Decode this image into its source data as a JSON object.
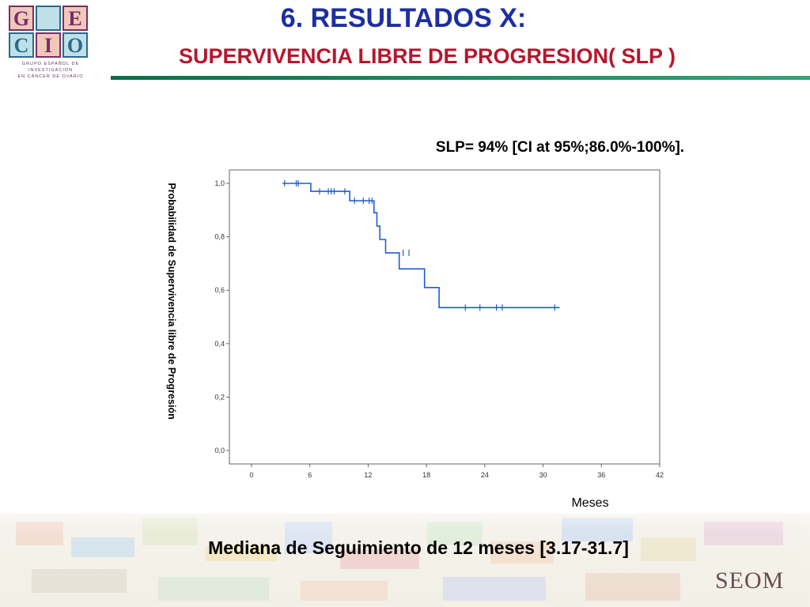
{
  "header": {
    "title": "6. RESULTADOS X:",
    "subtitle": "SUPERVIVENCIA LIBRE DE PROGRESION( SLP )"
  },
  "logo": {
    "letters": [
      "G",
      "E",
      "C",
      "I",
      "O"
    ],
    "caption": [
      "GRUPO ESPAÑOL DE",
      "INVESTIGACIÓN",
      "EN CÁNCER DE OVARIO"
    ]
  },
  "annotation": "SLP= 94% [CI at 95%;86.0%-100%].",
  "footer": {
    "text": "Mediana de Seguimiento de 12 meses [3.17-31.7]",
    "brand": "SEOM"
  },
  "colors": {
    "title": "#1c2fa0",
    "subtitle": "#b5172d",
    "curve": "#1f5fd0",
    "accent_rule": "#1a8a5f"
  },
  "chart_data": {
    "type": "line",
    "step": true,
    "xlabel": "Meses",
    "ylabel": "Probabilidad de Supervivencia libre de Progresión",
    "xlim": [
      0,
      42
    ],
    "ylim": [
      0,
      1
    ],
    "xticks": [
      "0",
      "6",
      "12",
      "18",
      "24",
      "30",
      "36",
      "42"
    ],
    "yticks": [
      "0,0",
      "0,2",
      "0,4",
      "0,6",
      "0,8",
      "1,0"
    ],
    "series": [
      {
        "x": [
          3.2,
          6.1,
          6.1,
          10.1,
          10.1,
          12.6,
          12.6,
          12.9,
          12.9,
          13.2,
          13.2,
          13.8,
          13.8,
          15.2,
          15.2,
          17.8,
          17.8,
          19.3,
          19.3,
          31.7
        ],
        "y": [
          1.0,
          1.0,
          0.97,
          0.97,
          0.935,
          0.935,
          0.89,
          0.89,
          0.84,
          0.84,
          0.79,
          0.79,
          0.74,
          0.74,
          0.68,
          0.68,
          0.61,
          0.61,
          0.535,
          0.535
        ],
        "censored_x": [
          3.4,
          4.6,
          4.8,
          7.0,
          7.9,
          8.2,
          8.5,
          9.6,
          10.6,
          11.5,
          12.1,
          12.4,
          15.6,
          16.2,
          22.0,
          23.5,
          25.2,
          25.8,
          31.2
        ],
        "censored_y": [
          1.0,
          1.0,
          1.0,
          0.97,
          0.97,
          0.97,
          0.97,
          0.97,
          0.935,
          0.935,
          0.935,
          0.935,
          0.74,
          0.74,
          0.535,
          0.535,
          0.535,
          0.535,
          0.535
        ]
      }
    ]
  }
}
